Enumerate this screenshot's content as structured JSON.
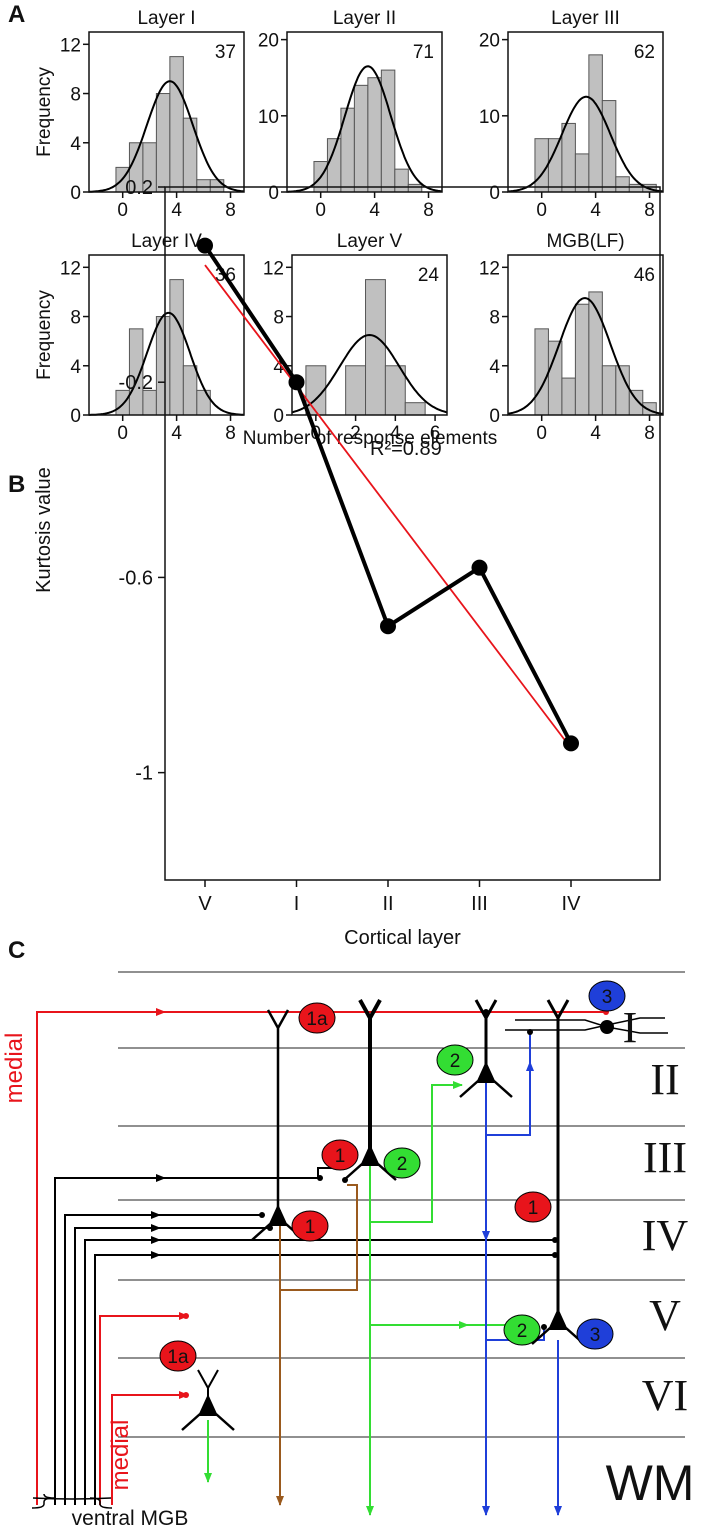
{
  "panel_labels": [
    "A",
    "B",
    "C"
  ],
  "shared_x_label": "Number of response elements",
  "chart_data": [
    {
      "type": "histogram",
      "title": "Layer I",
      "annotation": "37",
      "ylabel": "Frequency",
      "bins": [
        -0.5,
        0.5,
        1.5,
        2.5,
        3.5,
        4.5,
        5.5,
        6.5,
        7.5
      ],
      "counts": [
        2,
        4,
        4,
        8,
        11,
        6,
        1,
        1
      ],
      "color": "#c0c0c0",
      "fit": {
        "peak": 9,
        "mean": 3.5,
        "sd": 1.7
      },
      "xlim": [
        -2.5,
        9
      ],
      "xticks": [
        0,
        4,
        8
      ],
      "ylim": [
        0,
        13
      ],
      "yticks": [
        0,
        4,
        8,
        12
      ]
    },
    {
      "type": "histogram",
      "title": "Layer II",
      "annotation": "71",
      "bins": [
        -0.5,
        0.5,
        1.5,
        2.5,
        3.5,
        4.5,
        5.5,
        6.5,
        7.5
      ],
      "counts": [
        4,
        7,
        11,
        14,
        15,
        16,
        3,
        1
      ],
      "color": "#c0c0c0",
      "fit": {
        "peak": 16.5,
        "mean": 3.5,
        "sd": 1.7
      },
      "xlim": [
        -2.5,
        9
      ],
      "xticks": [
        0,
        4,
        8
      ],
      "ylim": [
        0,
        21
      ],
      "yticks": [
        0,
        10,
        20
      ]
    },
    {
      "type": "histogram",
      "title": "Layer III",
      "annotation": "62",
      "bins": [
        -0.5,
        0.5,
        1.5,
        2.5,
        3.5,
        4.5,
        5.5,
        6.5,
        7.5,
        8.5
      ],
      "counts": [
        7,
        7,
        9,
        5,
        18,
        12,
        2,
        1,
        1
      ],
      "color": "#c0c0c0",
      "fit": {
        "peak": 12.5,
        "mean": 3.3,
        "sd": 1.8
      },
      "xlim": [
        -2.5,
        9
      ],
      "xticks": [
        0,
        4,
        8
      ],
      "ylim": [
        0,
        21
      ],
      "yticks": [
        0,
        10,
        20
      ]
    },
    {
      "type": "histogram",
      "title": "Layer IV",
      "annotation": "36",
      "ylabel": "Frequency",
      "bins": [
        -0.5,
        0.5,
        1.5,
        2.5,
        3.5,
        4.5,
        5.5,
        6.5
      ],
      "counts": [
        2,
        7,
        2,
        8,
        11,
        4,
        2
      ],
      "color": "#c0c0c0",
      "fit": {
        "peak": 8.3,
        "mean": 3.4,
        "sd": 1.6
      },
      "xlim": [
        -2.5,
        9
      ],
      "xticks": [
        0,
        4,
        8
      ],
      "ylim": [
        0,
        13
      ],
      "yticks": [
        0,
        4,
        8,
        12
      ]
    },
    {
      "type": "histogram",
      "title": "Layer V",
      "annotation": "24",
      "bins": [
        -0.5,
        0.5,
        1.5,
        2.5,
        3.5,
        4.5,
        5.5
      ],
      "counts": [
        4,
        0,
        4,
        11,
        4,
        1
      ],
      "color": "#c0c0c0",
      "fit": {
        "peak": 6.5,
        "mean": 2.7,
        "sd": 1.5
      },
      "xlim": [
        -1.2,
        6.6
      ],
      "xticks": [
        0,
        2,
        4,
        6
      ],
      "ylim": [
        0,
        13
      ],
      "yticks": [
        0,
        4,
        8,
        12
      ]
    },
    {
      "type": "histogram",
      "title": "MGB(LF)",
      "annotation": "46",
      "bins": [
        -0.5,
        0.5,
        1.5,
        2.5,
        3.5,
        4.5,
        5.5,
        6.5,
        7.5,
        8.5
      ],
      "counts": [
        7,
        6,
        3,
        9,
        10,
        4,
        4,
        2,
        1
      ],
      "color": "#c0c0c0",
      "fit": {
        "peak": 9.5,
        "mean": 3.2,
        "sd": 1.9
      },
      "xlim": [
        -2.5,
        9
      ],
      "xticks": [
        0,
        4,
        8
      ],
      "ylim": [
        0,
        13
      ],
      "yticks": [
        0,
        4,
        8,
        12
      ]
    },
    {
      "type": "line",
      "xlabel": "Cortical layer",
      "ylabel": "Kurtosis value",
      "annotation": "R²=0.89",
      "categories": [
        "V",
        "I",
        "II",
        "III",
        "IV"
      ],
      "series": [
        {
          "color": "#000000",
          "values": [
            0.08,
            -0.2,
            -0.7,
            -0.58,
            -0.94
          ]
        }
      ],
      "trend_line": {
        "color": "#e8141b",
        "values": [
          0.04,
          -0.95
        ]
      },
      "ylim": [
        -1.22,
        0.2
      ],
      "yticks": [
        0.2,
        -0.2,
        -0.6,
        -1
      ]
    }
  ],
  "diagram": {
    "layers": [
      "I",
      "II",
      "III",
      "IV",
      "V",
      "VI",
      "WM"
    ],
    "badges": [
      {
        "label": "1a",
        "color": "#e8141b"
      },
      {
        "label": "3",
        "color": "#1f3fd9"
      },
      {
        "label": "2",
        "color": "#33dd33"
      },
      {
        "label": "1",
        "color": "#e8141b"
      },
      {
        "label": "2",
        "color": "#33dd33"
      },
      {
        "label": "1",
        "color": "#e8141b"
      },
      {
        "label": "1",
        "color": "#e8141b"
      },
      {
        "label": "2",
        "color": "#33dd33"
      },
      {
        "label": "3",
        "color": "#1f3fd9"
      },
      {
        "label": "1a",
        "color": "#e8141b"
      }
    ],
    "medial_labels": [
      "medial",
      "medial"
    ],
    "source_label": "ventral MGB"
  }
}
